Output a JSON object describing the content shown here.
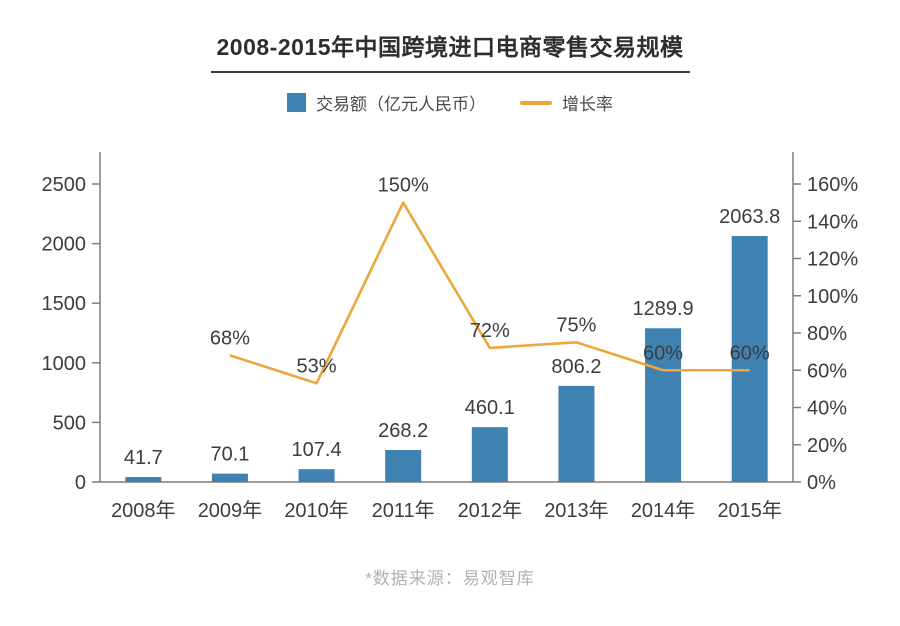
{
  "page": {
    "title": "2008-2015年中国跨境进口电商零售交易规模",
    "footer": "*数据来源：易观智库"
  },
  "legend": {
    "bar_label": "交易额（亿元人民币）",
    "line_label": "增长率"
  },
  "colors": {
    "bar": "#3f81b0",
    "line": "#eda63c",
    "axis": "#7d7d7d",
    "text": "#3d3d3d",
    "footer_text": "#b1b1b7"
  },
  "chart_data": {
    "type": "bar+line",
    "title": "2008-2015年中国跨境进口电商零售交易规模",
    "categories": [
      "2008年",
      "2009年",
      "2010年",
      "2011年",
      "2012年",
      "2013年",
      "2014年",
      "2015年"
    ],
    "series": [
      {
        "name": "交易额（亿元人民币）",
        "type": "bar",
        "axis": "left",
        "values": [
          41.7,
          70.1,
          107.4,
          268.2,
          460.1,
          806.2,
          1289.9,
          2063.8
        ],
        "labels": [
          "41.7",
          "70.1",
          "107.4",
          "268.2",
          "460.1",
          "806.2",
          "1289.9",
          "2063.8"
        ]
      },
      {
        "name": "增长率",
        "type": "line",
        "axis": "right",
        "unit": "%",
        "values": [
          null,
          68,
          53,
          150,
          72,
          75,
          60,
          60
        ],
        "labels": [
          null,
          "68%",
          "53%",
          "150%",
          "72%",
          "75%",
          "60%",
          "60%"
        ]
      }
    ],
    "left_axis": {
      "min": 0,
      "max": 2500,
      "step": 500,
      "ticks": [
        "0",
        "500",
        "1000",
        "1500",
        "2000",
        "2500"
      ]
    },
    "right_axis": {
      "min": 0,
      "max": 160,
      "step": 20,
      "ticks": [
        "0%",
        "20%",
        "40%",
        "60%",
        "80%",
        "100%",
        "120%",
        "140%",
        "160%"
      ]
    },
    "grid": false,
    "legend_position": "top",
    "source_note": "*数据来源：易观智库"
  }
}
